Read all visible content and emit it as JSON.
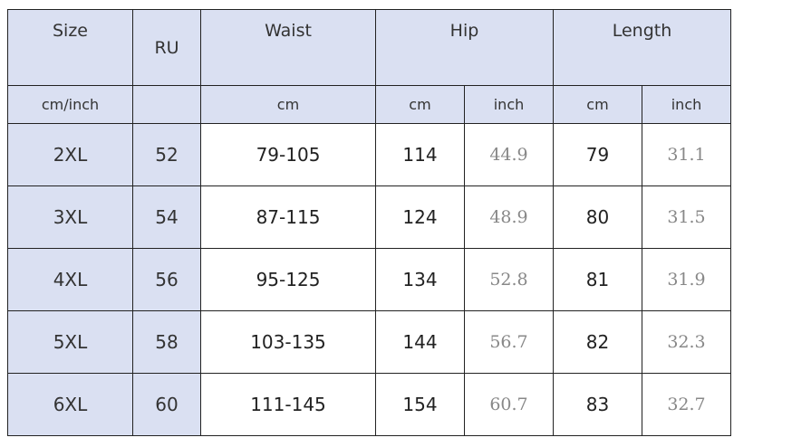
{
  "header": {
    "size": "Size",
    "ru": "RU",
    "waist": "Waist",
    "hip": "Hip",
    "length": "Length"
  },
  "units": {
    "size": "cm/inch",
    "ru": "",
    "waist": "cm",
    "hip_cm": "cm",
    "hip_inch": "inch",
    "length_cm": "cm",
    "length_inch": "inch"
  },
  "rows": [
    {
      "size": "2XL",
      "ru": "52",
      "waist": "79-105",
      "hip_cm": "114",
      "hip_inch": "44.9",
      "length_cm": "79",
      "length_inch": "31.1"
    },
    {
      "size": "3XL",
      "ru": "54",
      "waist": "87-115",
      "hip_cm": "124",
      "hip_inch": "48.9",
      "length_cm": "80",
      "length_inch": "31.5"
    },
    {
      "size": "4XL",
      "ru": "56",
      "waist": "95-125",
      "hip_cm": "134",
      "hip_inch": "52.8",
      "length_cm": "81",
      "length_inch": "31.9"
    },
    {
      "size": "5XL",
      "ru": "58",
      "waist": "103-135",
      "hip_cm": "144",
      "hip_inch": "56.7",
      "length_cm": "82",
      "length_inch": "32.3"
    },
    {
      "size": "6XL",
      "ru": "60",
      "waist": "111-145",
      "hip_cm": "154",
      "hip_inch": "60.7",
      "length_cm": "83",
      "length_inch": "32.7"
    }
  ],
  "colors": {
    "header_bg": "#dae0f2",
    "inch_text": "#888888"
  }
}
